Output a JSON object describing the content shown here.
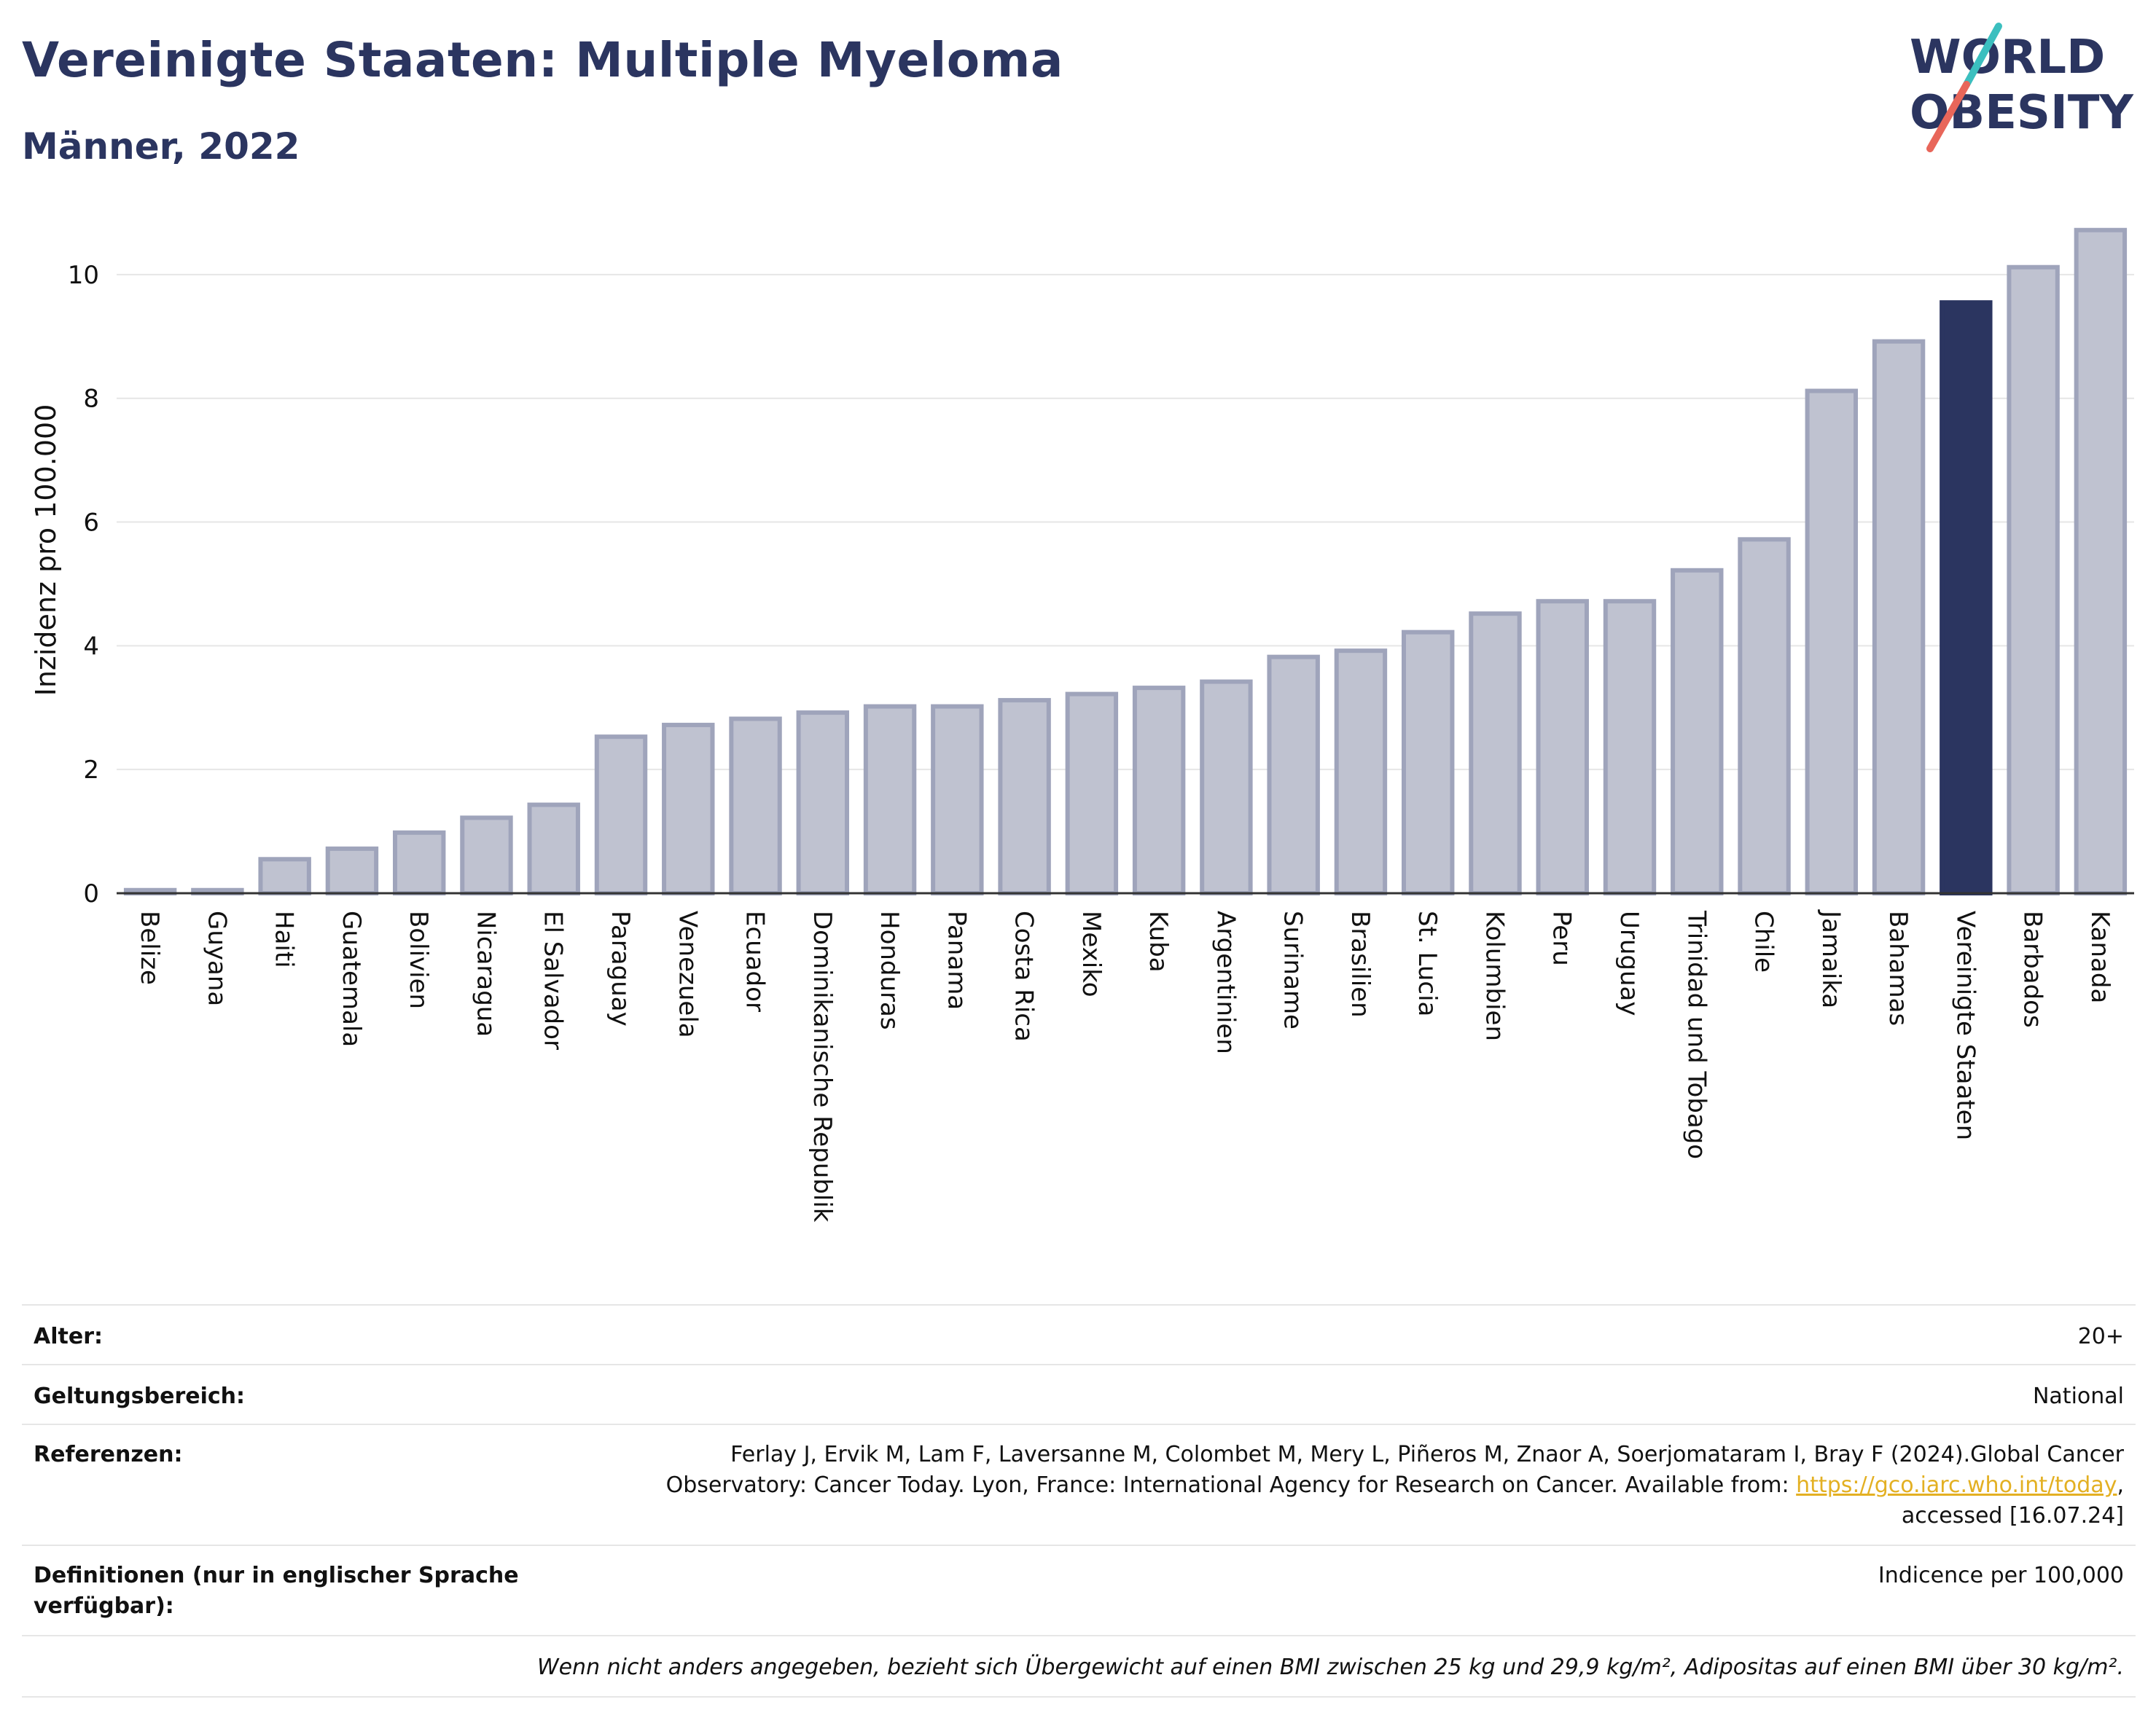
{
  "header": {
    "title": "Vereinigte Staaten: Multiple Myeloma",
    "subtitle": "Männer, 2022",
    "logo_line1": "WORLD",
    "logo_line2": "OBESITY"
  },
  "colors": {
    "title": "#2b3560",
    "bar": "#bfc2d0",
    "bar_stroke": "#9fa4bb",
    "highlight": "#2b3560",
    "link": "#e3b023",
    "logo_teal": "#3bbfbf",
    "logo_red": "#e8665a"
  },
  "chart_data": {
    "type": "bar",
    "ylabel": "Inzidenz pro 100.000",
    "ylim": [
      0,
      11
    ],
    "yticks": [
      0,
      2,
      4,
      6,
      8,
      10
    ],
    "grid": true,
    "highlight": "Vereinigte Staaten",
    "categories": [
      "Belize",
      "Guyana",
      "Haiti",
      "Guatemala",
      "Bolivien",
      "Nicaragua",
      "El Salvador",
      "Paraguay",
      "Venezuela",
      "Ecuador",
      "Dominikanische Republik",
      "Honduras",
      "Panama",
      "Costa Rica",
      "Mexiko",
      "Kuba",
      "Argentinien",
      "Suriname",
      "Brasilien",
      "St. Lucia",
      "Kolumbien",
      "Peru",
      "Uruguay",
      "Trinidad und Tobago",
      "Chile",
      "Jamaika",
      "Bahamas",
      "Vereinigte Staaten",
      "Barbados",
      "Kanada"
    ],
    "values": [
      0.05,
      0.05,
      0.55,
      0.72,
      0.98,
      1.22,
      1.43,
      2.53,
      2.72,
      2.82,
      2.92,
      3.02,
      3.02,
      3.12,
      3.22,
      3.32,
      3.42,
      3.82,
      3.92,
      4.22,
      4.52,
      4.72,
      4.72,
      5.22,
      5.72,
      8.12,
      8.92,
      9.55,
      10.12,
      10.72
    ]
  },
  "meta": {
    "age_label": "Alter:",
    "age_value": "20+",
    "scope_label": "Geltungsbereich:",
    "scope_value": "National",
    "ref_label": "Referenzen:",
    "ref_line1": "Ferlay J, Ervik M, Lam F, Laversanne M, Colombet M, Mery L, Piñeros M, Znaor A, Soerjomataram I, Bray F (2024).Global Cancer",
    "ref_line2_pre": "Observatory: Cancer Today. Lyon, France: International Agency for Research on Cancer. Available from: ",
    "ref_link": "https://gco.iarc.who.int/today",
    "ref_line2_post": ",",
    "ref_line3": "accessed [16.07.24]",
    "def_label_1": "Definitionen (nur in englischer Sprache",
    "def_label_2": "verfügbar):",
    "def_value": "Indicence per 100,000",
    "note": "Wenn nicht anders angegeben, bezieht sich Übergewicht auf einen BMI zwischen 25 kg und 29,9 kg/m², Adipositas auf einen BMI über 30 kg/m²."
  }
}
